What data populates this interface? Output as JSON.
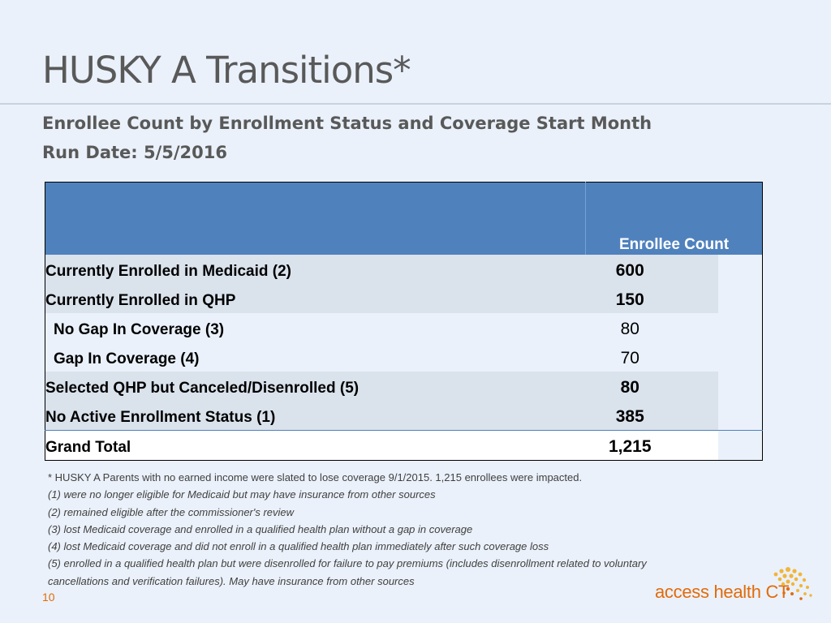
{
  "slide": {
    "title": "HUSKY A Transitions*",
    "subtitle": "Enrollee Count by Enrollment Status and Coverage Start Month",
    "run_date": "Run Date: 5/5/2016",
    "page_number": "10"
  },
  "table": {
    "header_value_label": "Enrollee Count",
    "rows": [
      {
        "label": "Currently Enrolled in Medicaid (2)",
        "value": "600"
      },
      {
        "label": "Currently Enrolled in QHP",
        "value": "150"
      },
      {
        "label": "No Gap In Coverage (3)",
        "value": "80"
      },
      {
        "label": "Gap In Coverage (4)",
        "value": "70"
      },
      {
        "label": "Selected QHP but Canceled/Disenrolled (5)",
        "value": "80"
      },
      {
        "label": "No Active Enrollment Status (1)",
        "value": "385"
      },
      {
        "label": "Grand Total",
        "value": "1,215"
      }
    ]
  },
  "footnotes": [
    "* HUSKY A Parents with no earned income were slated to lose coverage 9/1/2015. 1,215 enrollees were impacted.",
    "(1) were no longer eligible for Medicaid but may have insurance from other sources",
    "(2) remained eligible after the commissioner's review",
    "(3) lost Medicaid coverage and enrolled in a qualified health plan without a gap in coverage",
    "(4) lost Medicaid coverage and did not enroll in a qualified health plan immediately after such coverage loss",
    "(5) enrolled in a qualified health plan but were disenrolled for failure to pay premiums  (includes disenrollment related to voluntary",
    "cancellations and verification failures).  May have insurance from other sources"
  ],
  "logo": {
    "text": "access health",
    "suffix": "CT"
  },
  "colors": {
    "header_blue": "#4f81bd",
    "brand_orange": "#e26b0a",
    "background": "#eaf1fa",
    "band": "#dae2ec"
  }
}
